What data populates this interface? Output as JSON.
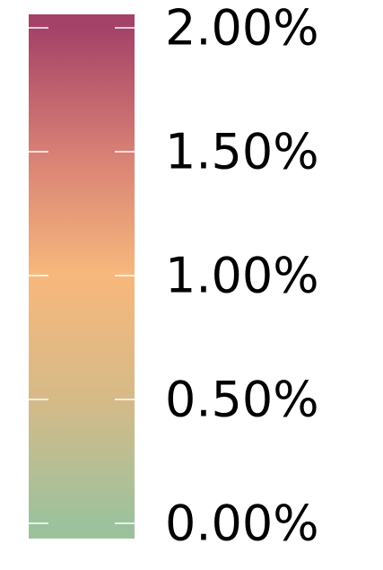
{
  "chart_data": {
    "type": "colorbar",
    "orientation": "vertical",
    "range": [
      0,
      2
    ],
    "unit": "%",
    "ticks": [
      {
        "value": 2.0,
        "label": "2.00%"
      },
      {
        "value": 1.5,
        "label": "1.50%"
      },
      {
        "value": 1.0,
        "label": "1.00%"
      },
      {
        "value": 0.5,
        "label": "0.50%"
      },
      {
        "value": 0.0,
        "label": "0.00%"
      }
    ],
    "color_stops": [
      {
        "value": 0.0,
        "color": "#9cc29d"
      },
      {
        "value": 0.5,
        "color": "#d6ba88"
      },
      {
        "value": 1.0,
        "color": "#f7b87c"
      },
      {
        "value": 1.5,
        "color": "#d77f75"
      },
      {
        "value": 2.0,
        "color": "#a54267"
      }
    ],
    "tick_mark_color": "#ffffff"
  }
}
